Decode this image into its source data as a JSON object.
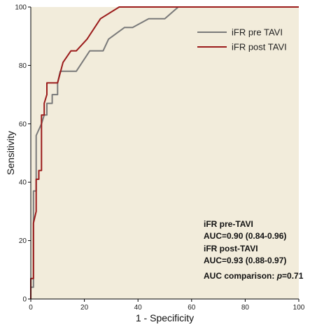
{
  "chart_data": {
    "type": "line",
    "title": "",
    "xlabel": "1 - Specificity",
    "ylabel": "Sensitivity",
    "xlim": [
      0,
      100
    ],
    "ylim": [
      0,
      100
    ],
    "xticks": [
      0,
      20,
      40,
      60,
      80,
      100
    ],
    "yticks": [
      0,
      20,
      40,
      60,
      80,
      100
    ],
    "background": "#f2ecdb",
    "grid": false,
    "legend_position": "top-right",
    "series": [
      {
        "name": "iFR pre TAVI",
        "color": "#7a7a7a",
        "x": [
          0,
          0,
          1,
          1,
          2,
          2,
          4,
          5,
          6,
          6,
          8,
          8,
          10,
          10,
          11,
          13,
          17,
          22,
          27,
          29,
          35,
          38,
          44,
          50,
          55,
          100
        ],
        "y": [
          0,
          4,
          4,
          37,
          37,
          56,
          60,
          63,
          63,
          67,
          67,
          70,
          70,
          74,
          78,
          78,
          78,
          85,
          85,
          89,
          93,
          93,
          96,
          96,
          100,
          100
        ]
      },
      {
        "name": "iFR post TAVI",
        "color": "#9b1b1b",
        "x": [
          0,
          0,
          1,
          1,
          2,
          2,
          3,
          3,
          4,
          4,
          5,
          5,
          6,
          6,
          10,
          12,
          15,
          17,
          21,
          26,
          33,
          100
        ],
        "y": [
          0,
          7,
          7,
          26,
          30,
          41,
          41,
          44,
          44,
          63,
          63,
          67,
          70,
          74,
          74,
          81,
          85,
          85,
          89,
          96,
          100,
          100
        ]
      }
    ],
    "annotations": [
      {
        "line1": "iFR pre-TAVI",
        "line2": "AUC=0.90 (0.84-0.96)"
      },
      {
        "line1": "iFR post-TAVI",
        "line2": "AUC=0.93 (0.88-0.97)"
      }
    ],
    "comparison": {
      "prefix": "AUC comparison: ",
      "italic": "p",
      "suffix": "=0.71"
    }
  }
}
